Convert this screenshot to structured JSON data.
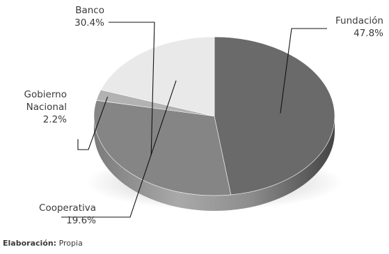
{
  "chart_data": {
    "type": "pie",
    "style": "3d",
    "categories": [
      "Fundación",
      "Banco",
      "Gobierno Nacional",
      "Cooperativa"
    ],
    "values": [
      47.8,
      30.4,
      2.2,
      19.6
    ],
    "value_labels": [
      "47.8%",
      "30.4%",
      "2.2%",
      "19.6%"
    ],
    "colors": [
      "#6a6a6a",
      "#858585",
      "#b2b2b2",
      "#e9e9e9"
    ],
    "side_colors": [
      "#4a4a4a",
      "#5c5c5c",
      "#7a7a7a",
      "#9a9a9a"
    ],
    "label_lines": [
      [
        "Fundación"
      ],
      [
        "Banco"
      ],
      [
        "Gobierno",
        "Nacional"
      ],
      [
        "Cooperativa"
      ]
    ]
  },
  "source": {
    "label": "Elaboración:",
    "text": " Propia"
  }
}
